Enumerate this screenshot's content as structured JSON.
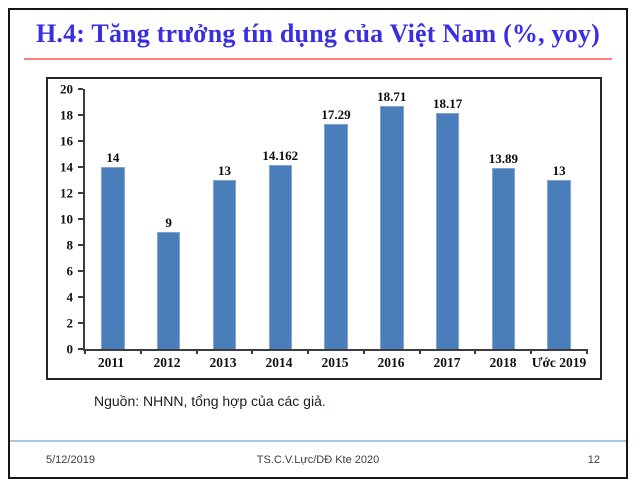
{
  "slide": {
    "title": "H.4: Tăng trưởng tín dụng của Việt Nam (%, yoy)",
    "source": {
      "text": "Nguồn: NHNN, tổng hợp của các giả",
      "period": "."
    },
    "footer": {
      "date": "5/12/2019",
      "center": "TS.C.V.Lực/DĐ Kte 2020",
      "page": "12"
    }
  },
  "colors": {
    "title": "#3a2ee1",
    "title_rule": "#ff7d7d",
    "bar_fill": "#4a7ebb",
    "bar_border": "#83a5d2",
    "footer_rule": "#aac4e4",
    "source_period": "#d20000"
  },
  "chart_data": {
    "type": "bar",
    "title": "H.4: Tăng trưởng tín dụng của Việt Nam (%, yoy)",
    "categories": [
      "2011",
      "2012",
      "2013",
      "2014",
      "2015",
      "2016",
      "2017",
      "2018",
      "Ước 2019"
    ],
    "values": [
      14,
      9,
      13,
      14.162,
      17.29,
      18.71,
      18.17,
      13.89,
      13
    ],
    "value_labels": [
      "14",
      "9",
      "13",
      "14.162",
      "17.29",
      "18.71",
      "18.17",
      "13.89",
      "13"
    ],
    "xlabel": "",
    "ylabel": "",
    "ylim": [
      0,
      20
    ],
    "yticks": [
      0,
      2,
      4,
      6,
      8,
      10,
      12,
      14,
      16,
      18,
      20
    ],
    "grid": false,
    "legend": false,
    "bar_color": "#4a7ebb"
  }
}
